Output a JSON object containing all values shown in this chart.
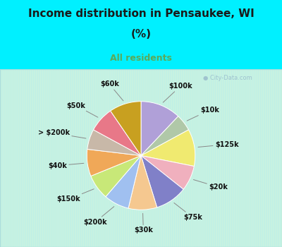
{
  "title_line1": "Income distribution in Pensaukee, WI",
  "title_line2": "(%)",
  "subtitle": "All residents",
  "bg_color": "#00f0ff",
  "chart_bg_top": "#b2eeee",
  "chart_bg_bottom": "#d8f5d8",
  "watermark": "City-Data.com",
  "labels": [
    "$100k",
    "$10k",
    "$125k",
    "$20k",
    "$75k",
    "$30k",
    "$200k",
    "$150k",
    "$40k",
    "> $200k",
    "$50k",
    "$60k"
  ],
  "values": [
    12.0,
    5.0,
    11.0,
    7.5,
    9.5,
    8.5,
    7.5,
    7.5,
    8.0,
    6.0,
    7.5,
    9.5
  ],
  "colors": [
    "#b0a0d8",
    "#b0c8a8",
    "#f0ea70",
    "#f0b0be",
    "#8080c8",
    "#f5c890",
    "#a0c0f0",
    "#c8e878",
    "#f0a858",
    "#c8b8a8",
    "#e87888",
    "#c8a020"
  ],
  "title_fontsize": 11,
  "subtitle_fontsize": 9,
  "label_fontsize": 7
}
